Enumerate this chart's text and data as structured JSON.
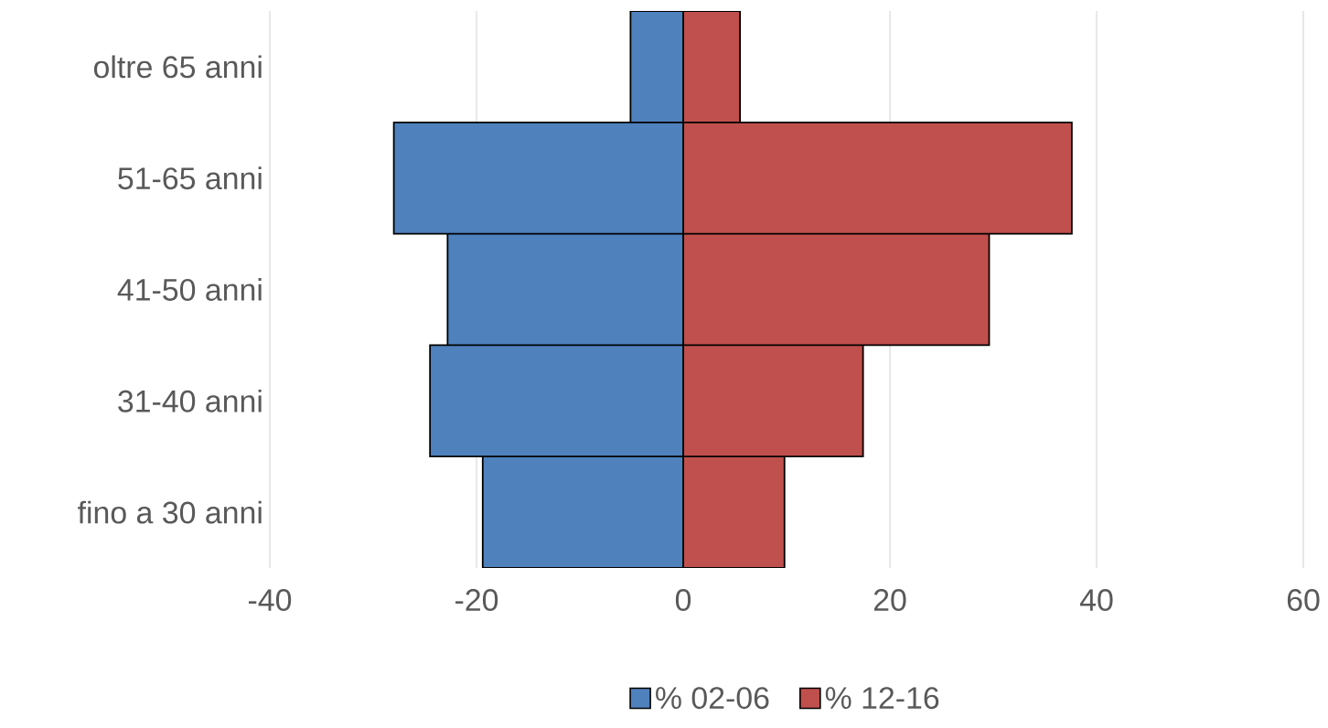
{
  "chart_data": {
    "type": "bar",
    "orientation": "horizontal",
    "categories": [
      "oltre 65 anni",
      "51-65 anni",
      "41-50 anni",
      "31-40 anni",
      "fino a 30 anni"
    ],
    "series": [
      {
        "name": "% 02-06",
        "color": "#4f81bd",
        "values": [
          -5.1,
          -28.0,
          -22.8,
          -24.5,
          -19.4
        ]
      },
      {
        "name": "% 12-16",
        "color": "#c0504d",
        "values": [
          5.5,
          37.6,
          29.6,
          17.4,
          9.8
        ]
      }
    ],
    "xlim": [
      -40,
      60
    ],
    "xticks": [
      -40,
      -20,
      0,
      20,
      40,
      60
    ],
    "stacked": true,
    "grid": "x",
    "legend": "bottom"
  }
}
